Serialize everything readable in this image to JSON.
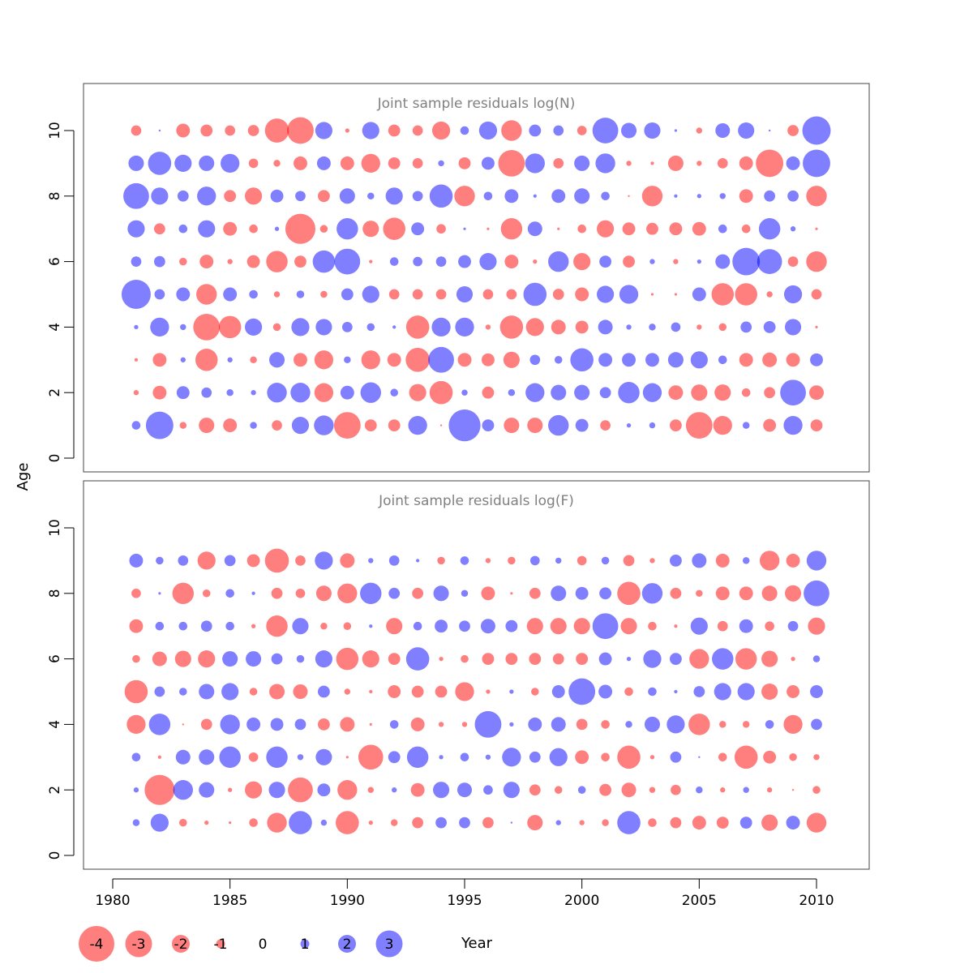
{
  "colors": {
    "negative": "#ff0000",
    "positive": "#0000ff",
    "frame": "#444444"
  },
  "chart_data": {
    "type": "bubble",
    "xlabel": "Year",
    "ylabel": "Age",
    "xlim": [
      1980,
      2010
    ],
    "ylim": [
      0,
      10
    ],
    "x_ticks": [
      1980,
      1985,
      1990,
      1995,
      2000,
      2005,
      2010
    ],
    "y_ticks": [
      0,
      2,
      4,
      6,
      8,
      10
    ],
    "years": [
      1981,
      1982,
      1983,
      1984,
      1985,
      1986,
      1987,
      1988,
      1989,
      1990,
      1991,
      1992,
      1993,
      1994,
      1995,
      1996,
      1997,
      1998,
      1999,
      2000,
      2001,
      2002,
      2003,
      2004,
      2005,
      2006,
      2007,
      2008,
      2009,
      2010
    ],
    "legend": [
      {
        "label": "-4",
        "value": -4
      },
      {
        "label": "-3",
        "value": -3
      },
      {
        "label": "-2",
        "value": -2
      },
      {
        "label": "-1",
        "value": -1
      },
      {
        "label": "0",
        "value": 0
      },
      {
        "label": "1",
        "value": 1
      },
      {
        "label": "2",
        "value": 2
      },
      {
        "label": "3",
        "value": 3
      }
    ],
    "panels": [
      {
        "title": "Joint sample residuals log(N)",
        "ages": [
          1,
          2,
          3,
          4,
          5,
          6,
          7,
          8,
          9,
          10
        ],
        "residuals": [
          [
            1,
            3.2,
            -0.8,
            -1.8,
            -1.6,
            0.8,
            -1.2,
            2,
            2.3,
            -3.1,
            -1.4,
            -1.4,
            2.2,
            -0.2,
            3.7,
            1.4,
            -1.8,
            -1.8,
            2.4,
            1.5,
            -1.2,
            0.5,
            0.7,
            -1.4,
            -3.1,
            -2.2,
            0.8,
            -1.5,
            2.2,
            -1.4
          ],
          [
            -0.6,
            -1.6,
            1.5,
            1.2,
            0.8,
            0.6,
            2.3,
            2.3,
            -2.2,
            1.6,
            2.4,
            0.9,
            -2.0,
            -2.7,
            0.7,
            -1.4,
            0.8,
            2.2,
            1.8,
            1.8,
            1.3,
            2.5,
            2.2,
            -1.7,
            -1.9,
            -1.9,
            -1.0,
            -1.3,
            3.0,
            -1.7
          ],
          [
            -0.4,
            -1.6,
            0.6,
            -2.6,
            0.6,
            -0.8,
            1.8,
            -1.6,
            -2.2,
            0.8,
            -2.2,
            -1.6,
            -2.8,
            3.0,
            -1.6,
            -1.5,
            -1.9,
            1.2,
            0.9,
            2.7,
            1.6,
            1.6,
            1.6,
            1.8,
            2.0,
            1.0,
            -1.6,
            -1.7,
            -1.6,
            1.5
          ],
          [
            0.5,
            2.2,
            0.7,
            -3.1,
            -2.6,
            2.0,
            -0.9,
            2.1,
            1.9,
            1.2,
            0.9,
            0.4,
            -2.7,
            2.2,
            2.2,
            -0.6,
            -2.7,
            -2.1,
            -1.7,
            -1.5,
            1.7,
            0.6,
            0.8,
            1.1,
            -0.6,
            -0.9,
            1.3,
            1.4,
            1.9,
            -0.3
          ],
          [
            3.4,
            1.2,
            1.6,
            -2.4,
            1.6,
            1.0,
            -0.7,
            0.9,
            -0.8,
            1.4,
            2.0,
            -1.2,
            -1.2,
            -1.2,
            1.9,
            -1.2,
            -1.2,
            2.7,
            -1.3,
            -1.6,
            2.0,
            2.2,
            -0.3,
            -0.3,
            1.6,
            -2.6,
            -2.6,
            -0.7,
            2.1,
            -1.2
          ],
          [
            1.2,
            1.3,
            -0.9,
            -1.6,
            -0.6,
            -1.5,
            -2.5,
            -1.4,
            2.6,
            3.0,
            -0.4,
            1.0,
            1.1,
            1.2,
            1.5,
            2.0,
            -1.6,
            -0.5,
            2.4,
            -2.0,
            1.4,
            -1.4,
            0.6,
            -0.6,
            0.5,
            1.7,
            3.2,
            2.9,
            -1.2,
            -2.4
          ],
          [
            2.0,
            -1.3,
            1.0,
            2.0,
            -1.6,
            -1.0,
            0.5,
            -3.5,
            -0.9,
            2.5,
            -1.9,
            -2.6,
            1.5,
            -1.1,
            0.3,
            -0.3,
            -2.5,
            1.7,
            -0.3,
            -1.0,
            -2.0,
            -1.5,
            -1.4,
            -1.5,
            -1.6,
            1.0,
            -1.0,
            2.5,
            0.6,
            -0.3
          ],
          [
            3.0,
            2.0,
            1.3,
            2.2,
            -1.4,
            -2.0,
            1.5,
            1.2,
            -1.4,
            1.8,
            0.8,
            2.0,
            1.2,
            2.7,
            -2.4,
            1.0,
            1.6,
            0.4,
            1.6,
            1.8,
            1.0,
            -0.1,
            -2.4,
            0.4,
            0.5,
            0.7,
            -1.6,
            1.3,
            1.3,
            -2.4
          ],
          [
            1.8,
            2.7,
            2.0,
            1.8,
            2.2,
            -1.1,
            -0.8,
            -1.6,
            1.6,
            -1.6,
            -2.2,
            -1.4,
            -1.2,
            0.7,
            -1.4,
            1.5,
            -3.1,
            2.3,
            -1.2,
            1.8,
            2.3,
            -0.6,
            -0.4,
            -1.8,
            -0.6,
            -1.2,
            -1.6,
            -3.2,
            1.6,
            3.2
          ],
          [
            -1.2,
            0.1,
            -1.6,
            -1.4,
            -1.2,
            -1.3,
            -2.8,
            -3.1,
            2.0,
            -0.5,
            2.0,
            -1.4,
            -1.2,
            -2.1,
            1.0,
            2.1,
            -2.4,
            1.4,
            1.2,
            -1.1,
            3.0,
            1.8,
            1.9,
            0.3,
            -0.7,
            1.7,
            1.9,
            0.2,
            -1.3,
            3.3
          ]
        ]
      },
      {
        "title": "Joint sample residuals log(F)",
        "ages": [
          1,
          2,
          3,
          4,
          5,
          6,
          7,
          8,
          9
        ],
        "residuals": [
          [
            0.8,
            2.1,
            -0.9,
            -0.5,
            -0.3,
            -1.0,
            -2.3,
            2.7,
            0.7,
            -2.7,
            -0.5,
            -0.8,
            -1.3,
            1.3,
            1.3,
            -1.3,
            0.2,
            -1.8,
            0.6,
            -0.6,
            -0.8,
            2.7,
            -1.0,
            -1.3,
            -1.6,
            -1.4,
            1.4,
            -1.9,
            1.6,
            -2.3
          ],
          [
            0.6,
            -3.5,
            2.3,
            1.8,
            -0.5,
            -2.0,
            1.9,
            -2.9,
            1.5,
            -2.3,
            -0.7,
            0.6,
            -1.6,
            1.9,
            1.7,
            1.1,
            1.9,
            -1.3,
            -0.9,
            0.9,
            -1.4,
            -1.7,
            -0.7,
            -1.2,
            0.8,
            -0.6,
            0.7,
            -0.6,
            -0.2,
            -0.9
          ],
          [
            1.0,
            -0.4,
            1.7,
            1.8,
            2.5,
            -1.1,
            2.5,
            0.7,
            1.9,
            -0.3,
            -2.9,
            1.4,
            2.5,
            0.5,
            1.0,
            0.6,
            2.2,
            1.3,
            2.1,
            -1.6,
            -1.0,
            -2.7,
            -0.5,
            1.3,
            0.2,
            -1.0,
            -2.7,
            -1.5,
            -0.9,
            -0.7
          ],
          [
            -2.2,
            2.5,
            -0.2,
            -1.3,
            2.3,
            1.6,
            1.5,
            1.3,
            -1.4,
            -1.7,
            -0.3,
            1.0,
            -1.6,
            -0.6,
            -0.6,
            3.1,
            0.5,
            1.6,
            1.7,
            -1.3,
            -1.0,
            0.8,
            1.8,
            2.1,
            -2.5,
            -0.8,
            -0.8,
            1.0,
            -2.2,
            1.3
          ],
          [
            -2.7,
            1.2,
            0.9,
            1.8,
            2.0,
            -0.9,
            -1.8,
            -1.7,
            1.4,
            -0.7,
            -0.4,
            -1.5,
            -1.4,
            -1.4,
            -2.2,
            -0.5,
            0.5,
            -0.9,
            1.5,
            3.1,
            1.6,
            -1.0,
            1.0,
            0.4,
            1.3,
            2.0,
            2.0,
            -1.9,
            -1.5,
            1.5
          ],
          [
            -0.9,
            -1.7,
            -1.9,
            -2.0,
            1.8,
            1.8,
            1.3,
            0.9,
            2.0,
            -2.6,
            -2.0,
            -1.4,
            2.7,
            -0.5,
            -0.9,
            -1.4,
            -1.4,
            -1.4,
            -1.3,
            -1.4,
            1.5,
            0.5,
            2.1,
            1.4,
            -2.3,
            2.5,
            -2.5,
            -1.9,
            -0.5,
            0.8
          ],
          [
            -1.6,
            1.0,
            1.0,
            1.3,
            1.0,
            -0.5,
            -2.5,
            1.9,
            -0.8,
            -0.9,
            0.4,
            -1.9,
            1.0,
            1.5,
            1.3,
            1.7,
            1.4,
            -1.9,
            -1.9,
            -1.9,
            3.0,
            -1.9,
            -1.0,
            -0.4,
            2.0,
            -1.2,
            1.6,
            -1.1,
            1.2,
            -2.0
          ],
          [
            -1.1,
            0.3,
            -2.5,
            -0.9,
            1.0,
            0.4,
            -1.3,
            -1.1,
            -1.8,
            -2.3,
            2.5,
            1.3,
            -1.3,
            1.8,
            0.8,
            -1.6,
            -0.3,
            -1.3,
            1.8,
            1.5,
            1.4,
            -2.7,
            2.4,
            -1.3,
            -0.8,
            -1.6,
            -1.6,
            -1.8,
            -1.9,
            3.0
          ],
          [
            1.6,
            0.9,
            1.2,
            -2.1,
            1.3,
            -1.5,
            -2.8,
            -1.2,
            2.1,
            -1.7,
            0.6,
            1.2,
            0.4,
            -0.9,
            1.0,
            -0.6,
            -0.9,
            1.1,
            0.7,
            -1.1,
            0.9,
            -1.3,
            -0.6,
            1.4,
            1.7,
            -1.6,
            0.8,
            -2.3,
            -1.6,
            2.3
          ]
        ]
      }
    ]
  }
}
